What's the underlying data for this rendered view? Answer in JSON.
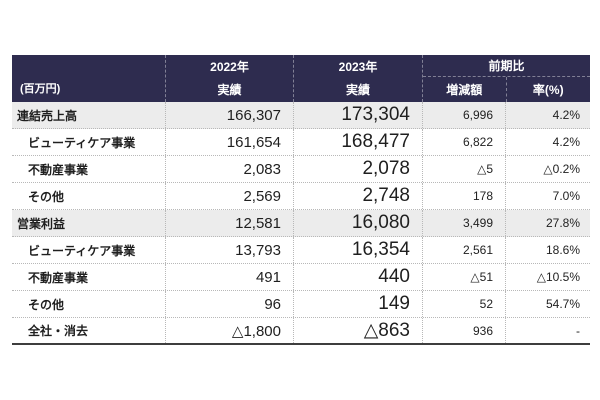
{
  "colors": {
    "header_bg": "#2e2c4f",
    "header_text": "#ffffff",
    "shaded_row_bg": "#ececec",
    "row_bg": "#ffffff",
    "text": "#1f1f1f",
    "grid_line": "#b8b8b8",
    "bottom_border": "#3e3e3e"
  },
  "table": {
    "unit_label": "(百万円)",
    "columns": {
      "y2022": {
        "line1": "2022年",
        "line2": "実績"
      },
      "y2023": {
        "line1": "2023年",
        "line2": "実績"
      },
      "comparison": {
        "label": "前期比",
        "diff": "増減額",
        "rate": "率(%)"
      }
    },
    "rows": [
      {
        "label": "連結売上高",
        "indent": false,
        "shaded": true,
        "y2022": "166,307",
        "y2023": "173,304",
        "diff": "6,996",
        "rate": "4.2%"
      },
      {
        "label": "ビューティケア事業",
        "indent": true,
        "shaded": false,
        "y2022": "161,654",
        "y2023": "168,477",
        "diff": "6,822",
        "rate": "4.2%"
      },
      {
        "label": "不動産事業",
        "indent": true,
        "shaded": false,
        "y2022": "2,083",
        "y2023": "2,078",
        "diff": "△5",
        "rate": "△0.2%"
      },
      {
        "label": "その他",
        "indent": true,
        "shaded": false,
        "y2022": "2,569",
        "y2023": "2,748",
        "diff": "178",
        "rate": "7.0%"
      },
      {
        "label": "営業利益",
        "indent": false,
        "shaded": true,
        "y2022": "12,581",
        "y2023": "16,080",
        "diff": "3,499",
        "rate": "27.8%"
      },
      {
        "label": "ビューティケア事業",
        "indent": true,
        "shaded": false,
        "y2022": "13,793",
        "y2023": "16,354",
        "diff": "2,561",
        "rate": "18.6%"
      },
      {
        "label": "不動産事業",
        "indent": true,
        "shaded": false,
        "y2022": "491",
        "y2023": "440",
        "diff": "△51",
        "rate": "△10.5%"
      },
      {
        "label": "その他",
        "indent": true,
        "shaded": false,
        "y2022": "96",
        "y2023": "149",
        "diff": "52",
        "rate": "54.7%"
      },
      {
        "label": "全社・消去",
        "indent": true,
        "shaded": false,
        "y2022": "△1,800",
        "y2023": "△863",
        "diff": "936",
        "rate": "-"
      }
    ]
  }
}
